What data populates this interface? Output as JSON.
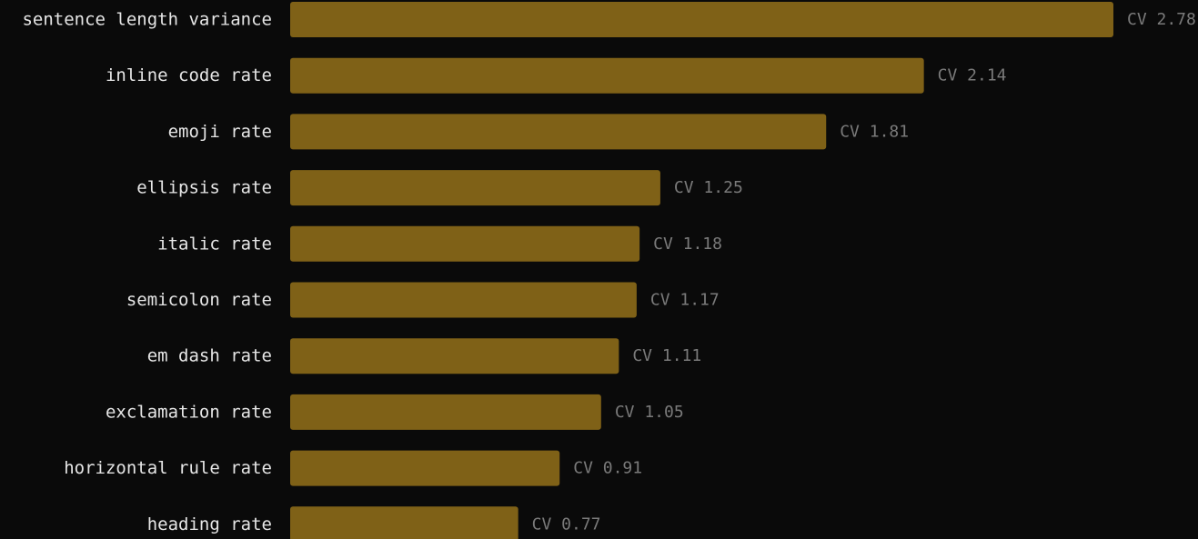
{
  "colors": {
    "background": "#0a0a0a",
    "bar": "#7f6117",
    "category_text": "#e6e6e6",
    "value_text": "#7a7a7a"
  },
  "chart_data": {
    "type": "bar",
    "orientation": "horizontal",
    "title": "",
    "xlabel": "",
    "ylabel": "",
    "grid": false,
    "value_prefix": "CV",
    "xlim": [
      0,
      2.78
    ],
    "categories": [
      "sentence length variance",
      "inline code rate",
      "emoji rate",
      "ellipsis rate",
      "italic rate",
      "semicolon rate",
      "em dash rate",
      "exclamation rate",
      "horizontal rule rate",
      "heading rate"
    ],
    "values": [
      2.78,
      2.14,
      1.81,
      1.25,
      1.18,
      1.17,
      1.11,
      1.05,
      0.91,
      0.77
    ],
    "value_labels": [
      "CV 2.78",
      "CV 2.14",
      "CV 1.81",
      "CV 1.25",
      "CV 1.18",
      "CV 1.17",
      "CV 1.11",
      "CV 1.05",
      "CV 0.91",
      "CV 0.77"
    ]
  }
}
